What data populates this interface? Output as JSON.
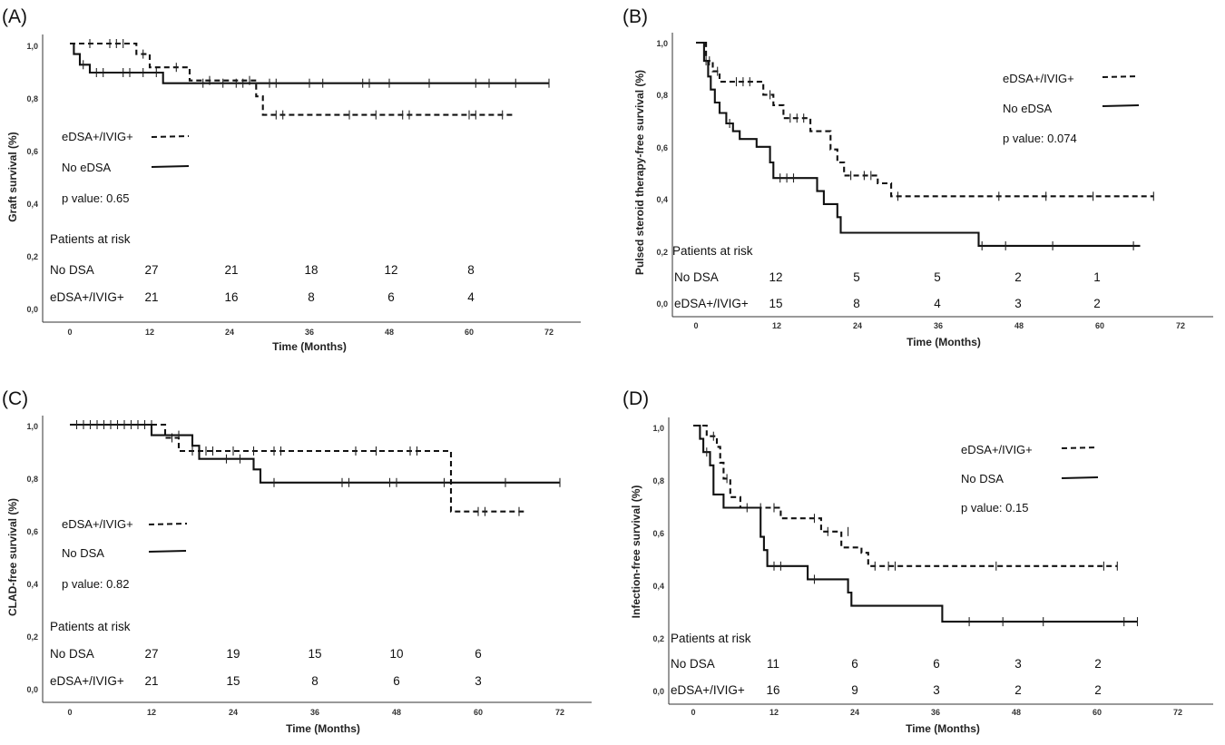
{
  "chart_data": [
    {
      "type": "line",
      "panel_label": "(A)",
      "ylabel": "Graft survival (%)",
      "xlabel": "Time (Months)",
      "xlim": [
        0,
        72
      ],
      "ylim": [
        0,
        1
      ],
      "x_ticks": [
        "0",
        "12",
        "24",
        "36",
        "48",
        "60",
        "72"
      ],
      "y_ticks": [
        "0,0",
        "0,2",
        "0,4",
        "0,6",
        "0,8",
        "1,0"
      ],
      "legend": [
        {
          "label": "eDSA+/IVIG+",
          "style": "dashed"
        },
        {
          "label": "No eDSA",
          "style": "solid"
        }
      ],
      "p_value_text": "p value:  0.65",
      "risk_table": {
        "title": "Patients at risk",
        "rows": [
          {
            "label": "No DSA",
            "values": [
              "27",
              "21",
              "18",
              "12",
              "8"
            ]
          },
          {
            "label": "eDSA+/IVIG+",
            "values": [
              "21",
              "16",
              "8",
              "6",
              "4"
            ]
          }
        ]
      },
      "series": [
        {
          "name": "eDSA+/IVIG+",
          "style": "dashed",
          "steps": [
            [
              0,
              1.0
            ],
            [
              10,
              0.96
            ],
            [
              12,
              0.91
            ],
            [
              18,
              0.86
            ],
            [
              28,
              0.8
            ],
            [
              29,
              0.73
            ],
            [
              67,
              0.73
            ]
          ],
          "censored": [
            [
              3,
              1.0
            ],
            [
              6,
              1.0
            ],
            [
              7,
              1.0
            ],
            [
              8,
              1.0
            ],
            [
              11,
              0.96
            ],
            [
              16,
              0.91
            ],
            [
              21,
              0.86
            ],
            [
              27,
              0.86
            ],
            [
              31,
              0.73
            ],
            [
              32,
              0.73
            ],
            [
              42,
              0.73
            ],
            [
              46,
              0.73
            ],
            [
              50,
              0.73
            ],
            [
              51,
              0.73
            ],
            [
              60,
              0.73
            ],
            [
              61,
              0.73
            ],
            [
              65,
              0.73
            ]
          ]
        },
        {
          "name": "No eDSA",
          "style": "solid",
          "steps": [
            [
              0,
              1.0
            ],
            [
              0.6,
              0.96
            ],
            [
              1.5,
              0.92
            ],
            [
              3,
              0.89
            ],
            [
              14,
              0.85
            ],
            [
              72,
              0.85
            ]
          ],
          "censored": [
            [
              2,
              0.92
            ],
            [
              4,
              0.89
            ],
            [
              5,
              0.89
            ],
            [
              8,
              0.89
            ],
            [
              9,
              0.89
            ],
            [
              11,
              0.89
            ],
            [
              13,
              0.89
            ],
            [
              20,
              0.85
            ],
            [
              23,
              0.85
            ],
            [
              25,
              0.85
            ],
            [
              26,
              0.85
            ],
            [
              30,
              0.85
            ],
            [
              31,
              0.85
            ],
            [
              36,
              0.85
            ],
            [
              38,
              0.85
            ],
            [
              44,
              0.85
            ],
            [
              45,
              0.85
            ],
            [
              48,
              0.85
            ],
            [
              54,
              0.85
            ],
            [
              61,
              0.85
            ],
            [
              63,
              0.85
            ],
            [
              67,
              0.85
            ],
            [
              72,
              0.85
            ]
          ]
        }
      ]
    },
    {
      "type": "line",
      "panel_label": "(B)",
      "ylabel": "Pulsed steroid therapy-free survival (%)",
      "xlabel": "Time (Months)",
      "xlim": [
        0,
        72
      ],
      "ylim": [
        0,
        1
      ],
      "x_ticks": [
        "0",
        "12",
        "24",
        "36",
        "48",
        "60",
        "72"
      ],
      "y_ticks": [
        "0,0",
        "0,2",
        "0,4",
        "0,6",
        "0,8",
        "1,0"
      ],
      "legend": [
        {
          "label": "eDSA+/IVIG+",
          "style": "dashed"
        },
        {
          "label": "No eDSA",
          "style": "solid"
        }
      ],
      "p_value_text": "p value:  0.074",
      "risk_table": {
        "title": "Patients at risk",
        "rows": [
          {
            "label": "No DSA",
            "values": [
              "12",
              "5",
              "5",
              "2",
              "1"
            ]
          },
          {
            "label": "eDSA+/IVIG+",
            "values": [
              "15",
              "8",
              "4",
              "3",
              "2"
            ]
          }
        ]
      },
      "series": [
        {
          "name": "eDSA+/IVIG+",
          "style": "dashed",
          "steps": [
            [
              0,
              1.0
            ],
            [
              1.5,
              0.93
            ],
            [
              2.5,
              0.89
            ],
            [
              3.5,
              0.85
            ],
            [
              10,
              0.8
            ],
            [
              11.5,
              0.76
            ],
            [
              13,
              0.71
            ],
            [
              17,
              0.66
            ],
            [
              20,
              0.59
            ],
            [
              21,
              0.54
            ],
            [
              22,
              0.49
            ],
            [
              27,
              0.46
            ],
            [
              29,
              0.41
            ],
            [
              68,
              0.41
            ]
          ],
          "censored": [
            [
              2,
              0.93
            ],
            [
              3.2,
              0.89
            ],
            [
              6,
              0.85
            ],
            [
              7,
              0.85
            ],
            [
              8,
              0.85
            ],
            [
              11,
              0.8
            ],
            [
              14,
              0.71
            ],
            [
              15,
              0.71
            ],
            [
              16,
              0.71
            ],
            [
              23,
              0.49
            ],
            [
              25,
              0.49
            ],
            [
              26,
              0.49
            ],
            [
              30,
              0.41
            ],
            [
              45,
              0.41
            ],
            [
              52,
              0.41
            ],
            [
              59,
              0.41
            ],
            [
              68,
              0.41
            ]
          ]
        },
        {
          "name": "No eDSA",
          "style": "solid",
          "steps": [
            [
              0,
              1.0
            ],
            [
              1.2,
              0.93
            ],
            [
              1.8,
              0.87
            ],
            [
              2.2,
              0.82
            ],
            [
              2.8,
              0.77
            ],
            [
              3.5,
              0.73
            ],
            [
              4.5,
              0.69
            ],
            [
              5.5,
              0.66
            ],
            [
              6.5,
              0.63
            ],
            [
              9,
              0.6
            ],
            [
              11,
              0.54
            ],
            [
              11.5,
              0.48
            ],
            [
              18,
              0.43
            ],
            [
              19,
              0.38
            ],
            [
              21,
              0.33
            ],
            [
              21.5,
              0.27
            ],
            [
              42,
              0.22
            ],
            [
              66,
              0.22
            ]
          ],
          "censored": [
            [
              1.5,
              0.93
            ],
            [
              5,
              0.69
            ],
            [
              12.5,
              0.48
            ],
            [
              13.5,
              0.48
            ],
            [
              14.5,
              0.48
            ],
            [
              42.5,
              0.22
            ],
            [
              46,
              0.22
            ],
            [
              53,
              0.22
            ],
            [
              65,
              0.22
            ]
          ]
        }
      ]
    },
    {
      "type": "line",
      "panel_label": "(C)",
      "ylabel": "CLAD-free survival (%)",
      "xlabel": "Time (Months)",
      "xlim": [
        0,
        72
      ],
      "ylim": [
        0,
        1
      ],
      "x_ticks": [
        "0",
        "12",
        "24",
        "36",
        "48",
        "60",
        "72"
      ],
      "y_ticks": [
        "0,0",
        "0,2",
        "0,4",
        "0,6",
        "0,8",
        "1,0"
      ],
      "legend": [
        {
          "label": "eDSA+/IVIG+",
          "style": "dashed"
        },
        {
          "label": "No DSA",
          "style": "solid"
        }
      ],
      "p_value_text": "p value:  0.82",
      "risk_table": {
        "title": "Patients at risk",
        "rows": [
          {
            "label": "No DSA",
            "values": [
              "27",
              "19",
              "15",
              "10",
              "6"
            ]
          },
          {
            "label": "eDSA+/IVIG+",
            "values": [
              "21",
              "15",
              "8",
              "6",
              "3"
            ]
          }
        ]
      },
      "series": [
        {
          "name": "eDSA+/IVIG+",
          "style": "dashed",
          "steps": [
            [
              0,
              1.0
            ],
            [
              14,
              0.95
            ],
            [
              16,
              0.9
            ],
            [
              56,
              0.67
            ],
            [
              67,
              0.67
            ]
          ],
          "censored": [
            [
              11,
              1.0
            ],
            [
              12,
              1.0
            ],
            [
              15,
              0.95
            ],
            [
              18,
              0.9
            ],
            [
              20,
              0.9
            ],
            [
              21,
              0.9
            ],
            [
              24,
              0.9
            ],
            [
              27,
              0.9
            ],
            [
              30,
              0.9
            ],
            [
              31,
              0.9
            ],
            [
              42,
              0.9
            ],
            [
              45,
              0.9
            ],
            [
              50,
              0.9
            ],
            [
              51,
              0.9
            ],
            [
              60,
              0.67
            ],
            [
              61,
              0.67
            ],
            [
              66,
              0.67
            ]
          ]
        },
        {
          "name": "No DSA",
          "style": "solid",
          "steps": [
            [
              0,
              1.0
            ],
            [
              12,
              0.96
            ],
            [
              18,
              0.92
            ],
            [
              19,
              0.87
            ],
            [
              27,
              0.83
            ],
            [
              28,
              0.78
            ],
            [
              72,
              0.78
            ]
          ],
          "censored": [
            [
              1,
              1.0
            ],
            [
              2,
              1.0
            ],
            [
              3,
              1.0
            ],
            [
              4,
              1.0
            ],
            [
              5,
              1.0
            ],
            [
              6,
              1.0
            ],
            [
              7,
              1.0
            ],
            [
              8,
              1.0
            ],
            [
              9,
              1.0
            ],
            [
              10,
              1.0
            ],
            [
              16,
              0.96
            ],
            [
              23,
              0.87
            ],
            [
              25,
              0.87
            ],
            [
              30,
              0.78
            ],
            [
              40,
              0.78
            ],
            [
              41,
              0.78
            ],
            [
              47,
              0.78
            ],
            [
              48,
              0.78
            ],
            [
              55,
              0.78
            ],
            [
              64,
              0.78
            ],
            [
              72,
              0.78
            ]
          ]
        }
      ]
    },
    {
      "type": "line",
      "panel_label": "(D)",
      "ylabel": "Infection-free survival (%)",
      "xlabel": "Time (Months)",
      "xlim": [
        0,
        72
      ],
      "ylim": [
        0,
        1
      ],
      "x_ticks": [
        "0",
        "12",
        "24",
        "36",
        "48",
        "60",
        "72"
      ],
      "y_ticks": [
        "0,0",
        "0,2",
        "0,4",
        "0,6",
        "0,8",
        "1,0"
      ],
      "legend": [
        {
          "label": "eDSA+/IVIG+",
          "style": "dashed"
        },
        {
          "label": "No DSA",
          "style": "solid"
        }
      ],
      "p_value_text": "p value:  0.15",
      "risk_table": {
        "title": "Patients at risk",
        "rows": [
          {
            "label": "No DSA",
            "values": [
              "11",
              "6",
              "6",
              "3",
              "2"
            ]
          },
          {
            "label": "eDSA+/IVIG+",
            "values": [
              "16",
              "9",
              "3",
              "2",
              "2"
            ]
          }
        ]
      },
      "series": [
        {
          "name": "eDSA+/IVIG+",
          "style": "dashed",
          "steps": [
            [
              0,
              1.0
            ],
            [
              2,
              0.96
            ],
            [
              3.5,
              0.92
            ],
            [
              4,
              0.86
            ],
            [
              4.5,
              0.8
            ],
            [
              5.5,
              0.73
            ],
            [
              7,
              0.69
            ],
            [
              13,
              0.65
            ],
            [
              19,
              0.6
            ],
            [
              22,
              0.54
            ],
            [
              25,
              0.52
            ],
            [
              26,
              0.47
            ],
            [
              63,
              0.47
            ]
          ],
          "censored": [
            [
              3,
              0.96
            ],
            [
              5,
              0.8
            ],
            [
              8,
              0.69
            ],
            [
              10,
              0.69
            ],
            [
              12,
              0.69
            ],
            [
              18,
              0.65
            ],
            [
              20,
              0.6
            ],
            [
              23,
              0.6
            ],
            [
              27,
              0.47
            ],
            [
              29,
              0.47
            ],
            [
              30,
              0.47
            ],
            [
              45,
              0.47
            ],
            [
              61,
              0.47
            ],
            [
              63,
              0.47
            ]
          ]
        },
        {
          "name": "No DSA",
          "style": "solid",
          "steps": [
            [
              0,
              1.0
            ],
            [
              1,
              0.95
            ],
            [
              1.5,
              0.9
            ],
            [
              2.5,
              0.85
            ],
            [
              3,
              0.74
            ],
            [
              4.5,
              0.69
            ],
            [
              10,
              0.58
            ],
            [
              10.5,
              0.53
            ],
            [
              11,
              0.47
            ],
            [
              17,
              0.42
            ],
            [
              23,
              0.37
            ],
            [
              23.5,
              0.32
            ],
            [
              37,
              0.26
            ],
            [
              66,
              0.26
            ]
          ],
          "censored": [
            [
              2,
              0.9
            ],
            [
              12,
              0.47
            ],
            [
              13,
              0.47
            ],
            [
              18,
              0.42
            ],
            [
              41,
              0.26
            ],
            [
              46,
              0.26
            ],
            [
              52,
              0.26
            ],
            [
              64,
              0.26
            ],
            [
              66,
              0.26
            ]
          ]
        }
      ]
    }
  ]
}
